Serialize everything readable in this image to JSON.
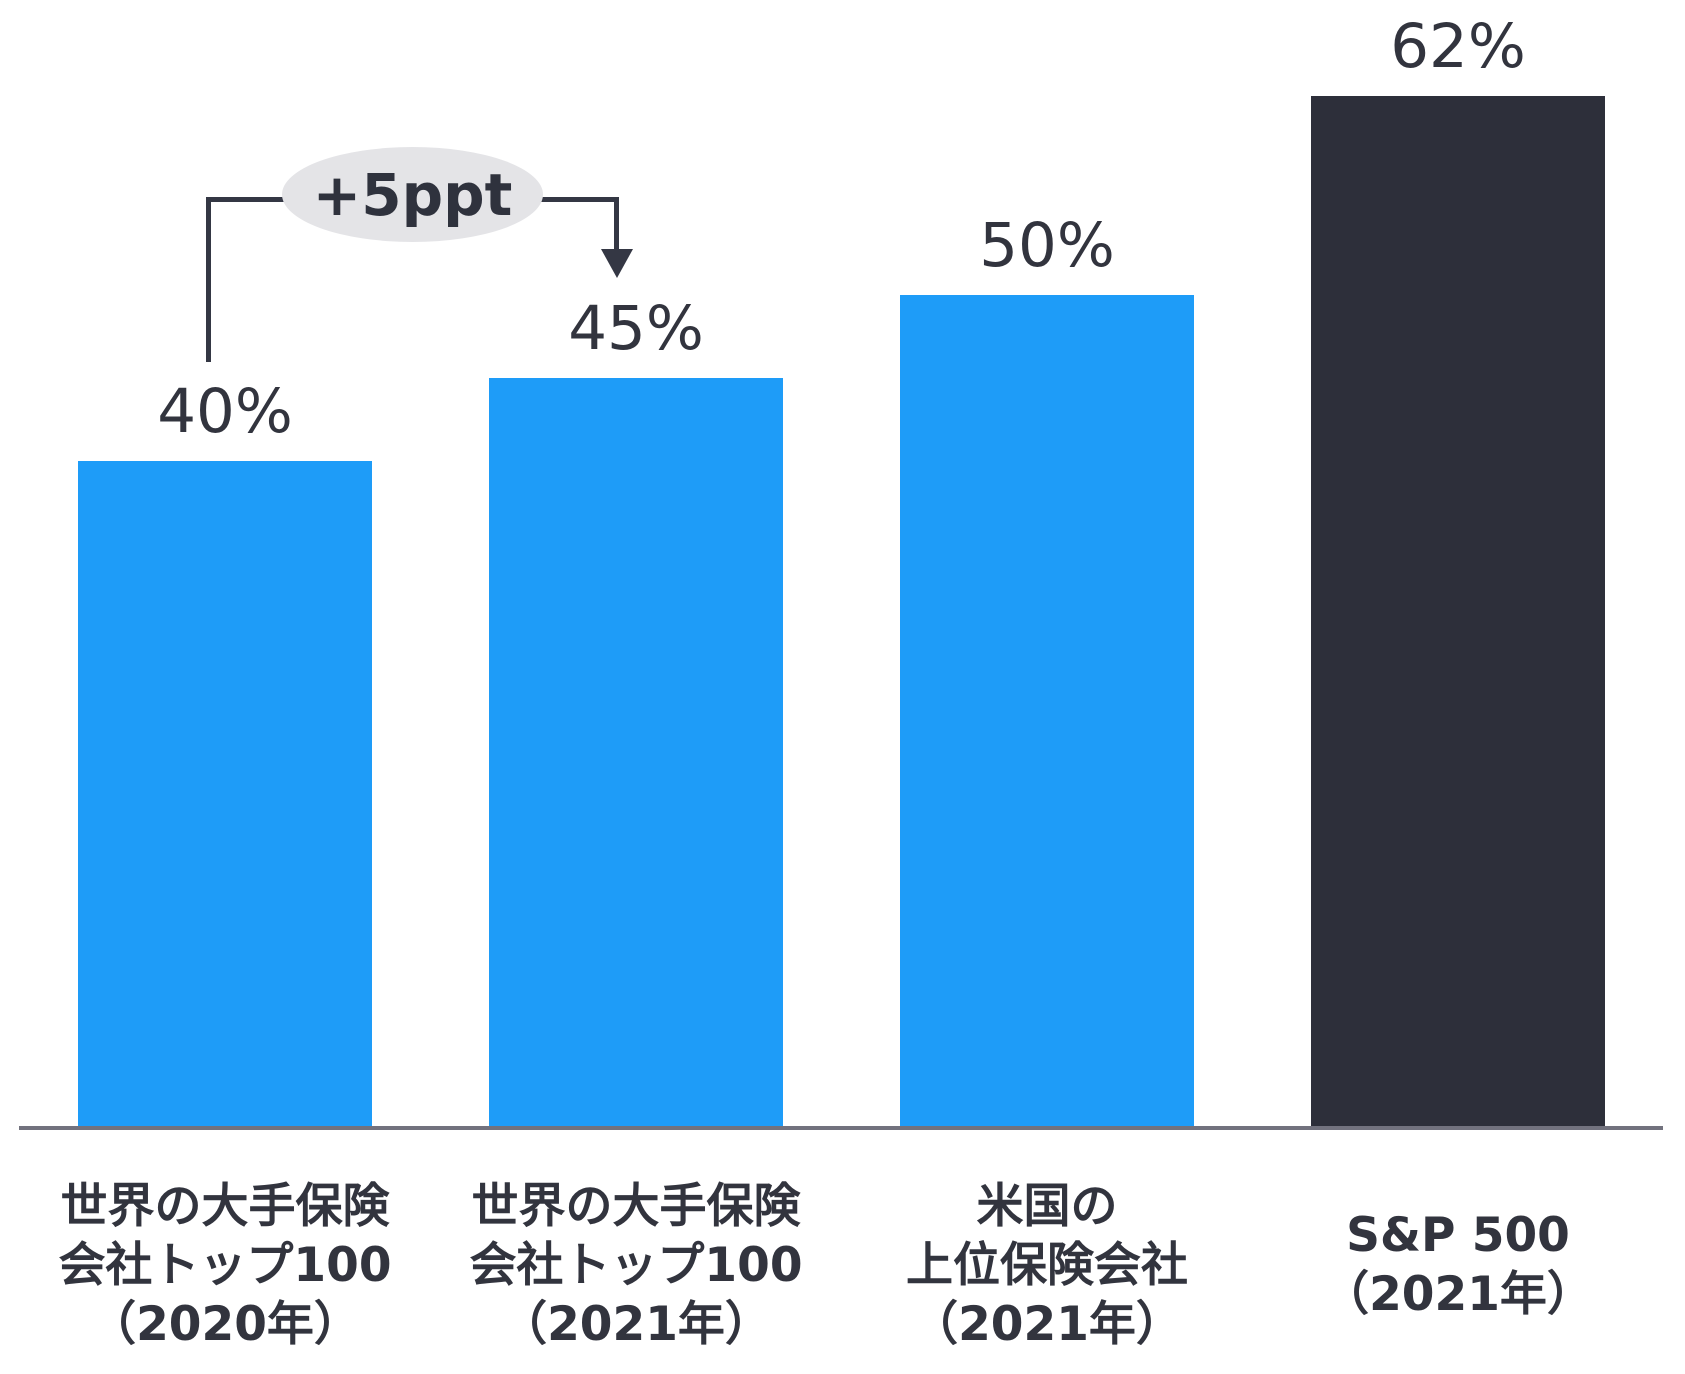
{
  "chart_data": {
    "type": "bar",
    "title": "",
    "xlabel": "",
    "ylabel": "",
    "unit": "%",
    "ylim": [
      0,
      65
    ],
    "grid": false,
    "legend": "none",
    "categories": [
      "世界の大手保険\n会社トップ100\n（2020年）",
      "世界の大手保険\n会社トップ100\n（2021年）",
      "米国の\n上位保険会社\n（2021年）",
      "S&P 500\n（2021年）"
    ],
    "values": [
      40,
      45,
      50,
      62
    ],
    "value_labels": [
      "40%",
      "45%",
      "50%",
      "62%"
    ],
    "bar_colors": [
      "#1e9cf8",
      "#1e9cf8",
      "#1e9cf8",
      "#2d2f3a"
    ],
    "emphasized_category_index": 3,
    "annotation": {
      "text": "+5ppt",
      "between": [
        "世界の大手保険会社トップ100（2020年）",
        "世界の大手保険会社トップ100（2021年）"
      ]
    }
  },
  "colors": {
    "bar_blue": "#1e9cf8",
    "bar_dark": "#2d2f3a",
    "ink": "#32343e",
    "axis_line": "#72727e",
    "connector": "#343744",
    "annotation_bubble_bg": "#e4e4e7"
  }
}
